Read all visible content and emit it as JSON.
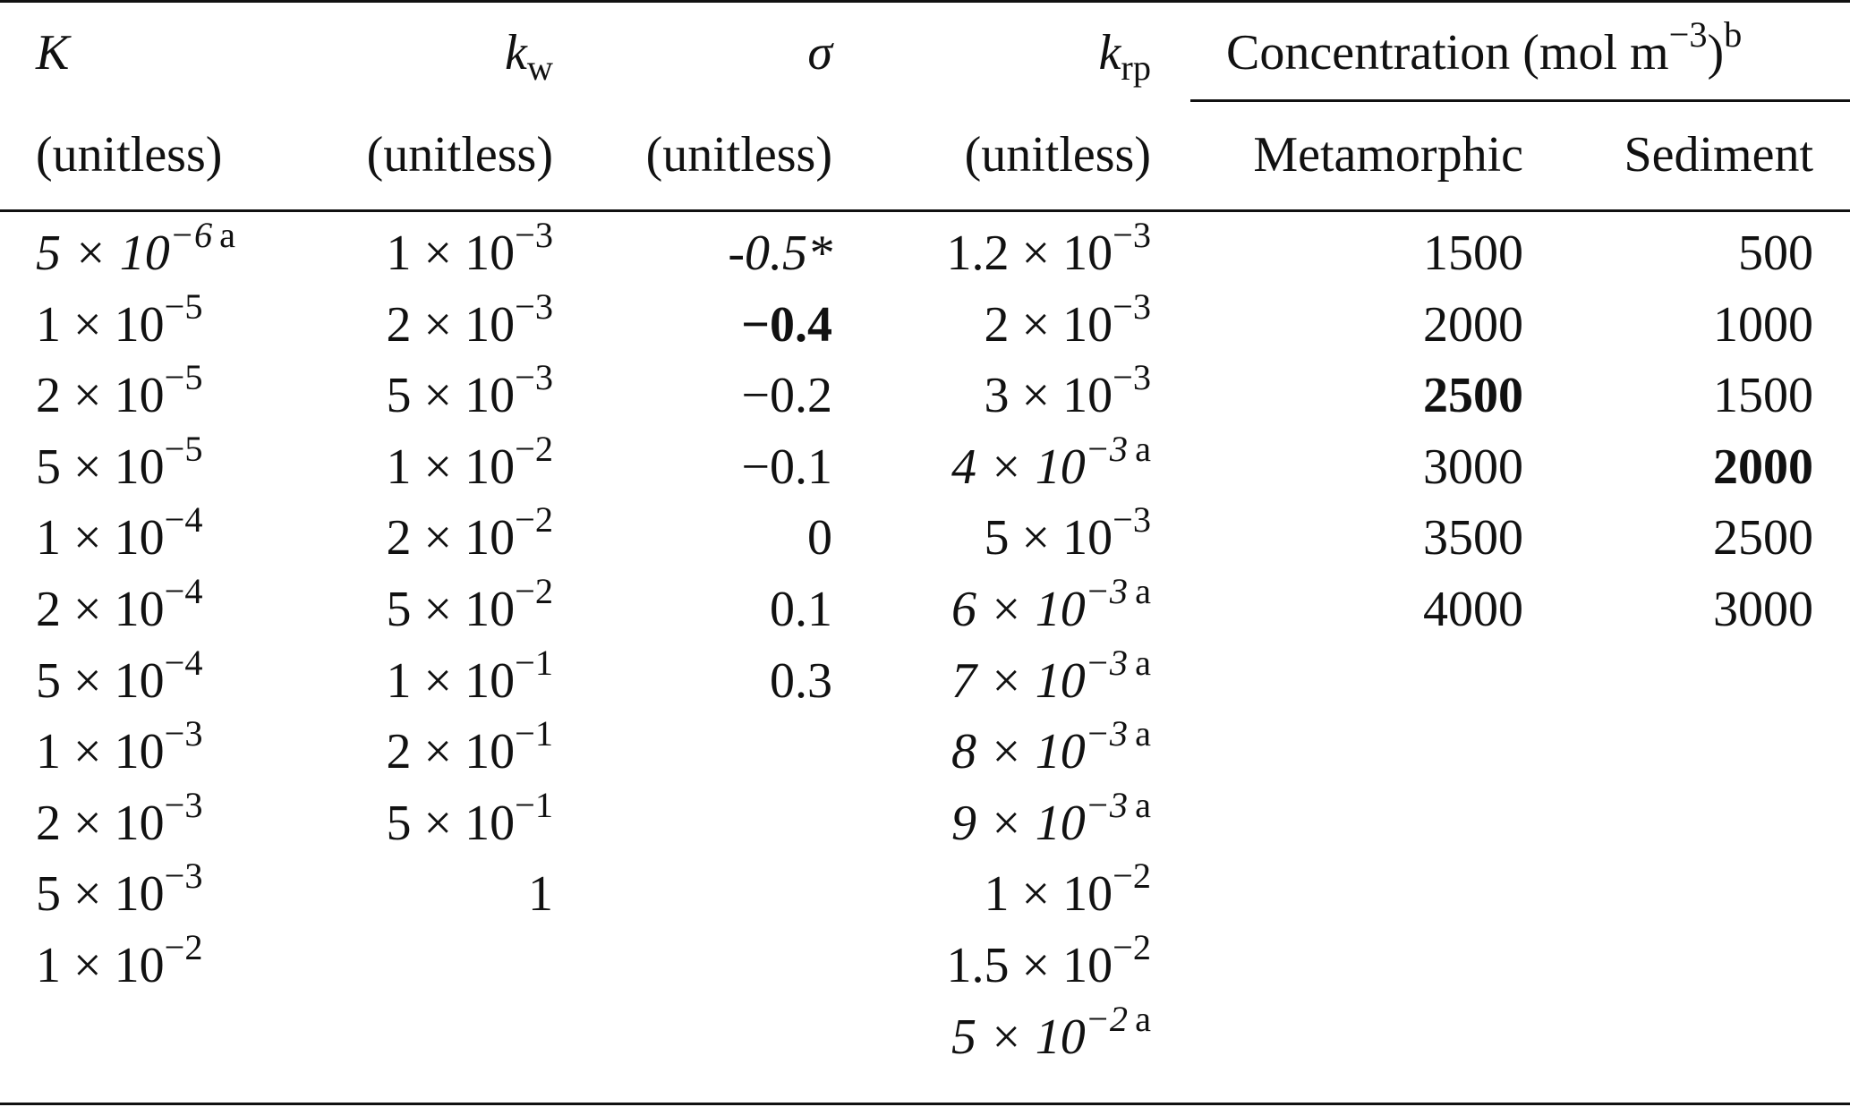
{
  "headers": {
    "K": {
      "symbol": "K",
      "sub": "",
      "unit": "(unitless)"
    },
    "kw": {
      "symbol": "k",
      "sub": "w",
      "unit": "(unitless)"
    },
    "sigma": {
      "symbol": "σ",
      "sub": "",
      "unit": "(unitless)"
    },
    "krp": {
      "symbol": "k",
      "sub": "rp",
      "unit": "(unitless)"
    },
    "concentration": {
      "label": "Concentration (mol m",
      "exp": "−3",
      "close": ")",
      "note": "b",
      "sub_metamorphic": "Metamorphic",
      "sub_sediment": "Sediment"
    }
  },
  "columns": {
    "K": [
      {
        "mant": "5 × 10",
        "exp": "−6",
        "note": "a",
        "italic": true
      },
      {
        "mant": "1 × 10",
        "exp": "−5"
      },
      {
        "mant": "2 × 10",
        "exp": "−5"
      },
      {
        "mant": "5 × 10",
        "exp": "−5"
      },
      {
        "mant": "1 × 10",
        "exp": "−4"
      },
      {
        "mant": "2 × 10",
        "exp": "−4"
      },
      {
        "mant": "5 × 10",
        "exp": "−4"
      },
      {
        "mant": "1 × 10",
        "exp": "−3"
      },
      {
        "mant": "2 × 10",
        "exp": "−3"
      },
      {
        "mant": "5 × 10",
        "exp": "−3"
      },
      {
        "mant": "1 × 10",
        "exp": "−2"
      }
    ],
    "kw": [
      {
        "mant": "1 × 10",
        "exp": "−3"
      },
      {
        "mant": "2 × 10",
        "exp": "−3"
      },
      {
        "mant": "5 × 10",
        "exp": "−3"
      },
      {
        "mant": "1 × 10",
        "exp": "−2"
      },
      {
        "mant": "2 × 10",
        "exp": "−2"
      },
      {
        "mant": "5 × 10",
        "exp": "−2"
      },
      {
        "mant": "1 × 10",
        "exp": "−1"
      },
      {
        "mant": "2 × 10",
        "exp": "−1"
      },
      {
        "mant": "5 × 10",
        "exp": "−1"
      },
      {
        "mant": "1",
        "exp": ""
      }
    ],
    "sigma": [
      {
        "mant": "-0.5*",
        "exp": "",
        "italic": true
      },
      {
        "mant": "−0.4",
        "exp": "",
        "bold": true
      },
      {
        "mant": "−0.2",
        "exp": ""
      },
      {
        "mant": "−0.1",
        "exp": ""
      },
      {
        "mant": "0",
        "exp": ""
      },
      {
        "mant": "0.1",
        "exp": ""
      },
      {
        "mant": "0.3",
        "exp": ""
      }
    ],
    "krp": [
      {
        "mant": "1.2 × 10",
        "exp": "−3"
      },
      {
        "mant": "2 × 10",
        "exp": "−3"
      },
      {
        "mant": "3 × 10",
        "exp": "−3"
      },
      {
        "mant": "4 × 10",
        "exp": "−3",
        "note": "a",
        "italic": true
      },
      {
        "mant": "5 × 10",
        "exp": "−3"
      },
      {
        "mant": "6 × 10",
        "exp": "−3",
        "note": "a",
        "italic": true
      },
      {
        "mant": "7 × 10",
        "exp": "−3",
        "note": "a",
        "italic": true
      },
      {
        "mant": "8 × 10",
        "exp": "−3",
        "note": "a",
        "italic": true
      },
      {
        "mant": "9 × 10",
        "exp": "−3",
        "note": "a",
        "italic": true
      },
      {
        "mant": "1 × 10",
        "exp": "−2"
      },
      {
        "mant": "1.5 × 10",
        "exp": "−2"
      },
      {
        "mant": "5 × 10",
        "exp": "−2",
        "note": "a",
        "italic": true
      }
    ],
    "metamorphic": [
      {
        "mant": "1500",
        "exp": ""
      },
      {
        "mant": "2000",
        "exp": ""
      },
      {
        "mant": "2500",
        "exp": "",
        "bold": true
      },
      {
        "mant": "3000",
        "exp": ""
      },
      {
        "mant": "3500",
        "exp": ""
      },
      {
        "mant": "4000",
        "exp": ""
      }
    ],
    "sediment": [
      {
        "mant": "500",
        "exp": ""
      },
      {
        "mant": "1000",
        "exp": ""
      },
      {
        "mant": "1500",
        "exp": ""
      },
      {
        "mant": "2000",
        "exp": "",
        "bold": true
      },
      {
        "mant": "2500",
        "exp": ""
      },
      {
        "mant": "3000",
        "exp": ""
      }
    ]
  }
}
